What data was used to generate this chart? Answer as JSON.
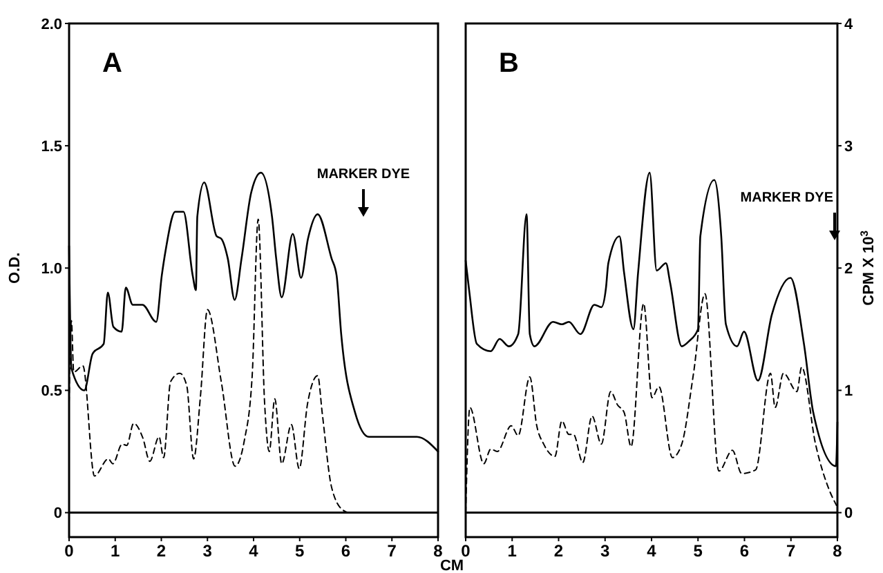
{
  "chart_data": [
    {
      "type": "line",
      "title": "A",
      "xlabel": "CM",
      "ylabel": "O.D.",
      "xlim": [
        0,
        8
      ],
      "xticks": [
        0,
        1,
        2,
        3,
        4,
        5,
        6,
        7,
        8
      ],
      "ylim": [
        -0.1,
        2.0
      ],
      "yticks": [
        0,
        0.5,
        {
          "value": 1,
          "label": "1.0"
        },
        1.5,
        {
          "value": 2,
          "label": "2.0"
        }
      ],
      "y2lim": [
        -0.2,
        4
      ],
      "grid": false,
      "marker": "none",
      "ref_lines": [
        {
          "axis": "y",
          "value": 0
        }
      ],
      "annotations": [
        "MARKER DYE"
      ],
      "series": [
        {
          "color": "#000000",
          "line_style": "solid",
          "x": [
            0,
            0.05,
            0.33,
            0.51,
            0.75,
            0.84,
            0.96,
            1.14,
            1.23,
            1.38,
            1.59,
            1.89,
            2.01,
            2.1,
            2.3,
            2.48,
            2.68,
            2.75,
            2.78,
            2.93,
            3.2,
            3.3,
            3.44,
            3.59,
            3.74,
            3.95,
            4.16,
            4.4,
            4.49,
            4.61,
            4.85,
            5.03,
            5.18,
            5.39,
            5.69,
            5.8,
            5.9,
            6.2,
            6.5,
            6.89,
            7.54,
            8
          ],
          "values": [
            1.09,
            0.59,
            0.5,
            0.65,
            0.69,
            0.9,
            0.76,
            0.74,
            0.92,
            0.85,
            0.85,
            0.78,
            0.97,
            1.08,
            1.23,
            1.23,
            0.97,
            0.91,
            1.21,
            1.35,
            1.13,
            1.12,
            1.04,
            0.87,
            1.04,
            1.31,
            1.39,
            1.21,
            1.04,
            0.88,
            1.14,
            0.96,
            1.12,
            1.22,
            1.04,
            0.97,
            0.73,
            0.41,
            0.31,
            0.31,
            0.31,
            0.25
          ]
        },
        {
          "color": "#000000",
          "line_style": "dashed",
          "axis": "y2",
          "x": [
            0,
            0.05,
            0.1,
            0.3,
            0.55,
            0.85,
            0.95,
            1.15,
            1.25,
            1.4,
            1.6,
            1.75,
            1.95,
            2.05,
            2.2,
            2.4,
            2.55,
            2.7,
            2.85,
            3.0,
            3.3,
            3.6,
            3.8,
            3.97,
            4.1,
            4.24,
            4.34,
            4.46,
            4.61,
            4.82,
            4.99,
            5.17,
            5.39,
            5.49,
            5.69,
            5.94,
            6.09,
            7.0,
            8.0
          ],
          "values": [
            0.9,
            1.57,
            1.15,
            1.2,
            0.3,
            0.44,
            0.4,
            0.56,
            0.55,
            0.73,
            0.61,
            0.42,
            0.62,
            0.45,
            1.07,
            1.14,
            1.04,
            0.44,
            0.96,
            1.66,
            1.07,
            0.38,
            0.59,
            1.12,
            2.4,
            0.89,
            0.5,
            0.93,
            0.4,
            0.72,
            0.36,
            0.89,
            1.12,
            0.81,
            0.21,
            0.02,
            0,
            0,
            0
          ]
        }
      ]
    },
    {
      "type": "line",
      "title": "B",
      "y2label": "CPM X 10$^{3}$",
      "xlim": [
        0,
        8
      ],
      "xticks": [
        0,
        1,
        2,
        3,
        4,
        5,
        6,
        7,
        8
      ],
      "ylim": [
        -0.1,
        2.0
      ],
      "y2lim": [
        -0.2,
        4
      ],
      "y2ticks": [
        0,
        1,
        2,
        3,
        4
      ],
      "grid": false,
      "marker": "none",
      "ref_lines": [
        {
          "axis": "y",
          "value": 0
        }
      ],
      "annotations": [
        "MARKER DYE"
      ],
      "series": [
        {
          "color": "#000000",
          "line_style": "solid",
          "x": [
            0,
            0.08,
            0.24,
            0.54,
            0.73,
            0.93,
            1.13,
            1.31,
            1.38,
            1.48,
            1.88,
            2.07,
            2.22,
            2.47,
            2.77,
            2.92,
            3.02,
            3.07,
            3.31,
            3.41,
            3.61,
            3.71,
            3.96,
            4.11,
            4.31,
            4.4,
            4.65,
            4.8,
            5.0,
            5.05,
            5.35,
            5.5,
            5.6,
            5.84,
            5.99,
            6.29,
            6.59,
            6.99,
            7.28,
            7.48,
            7.97,
            8.0
          ],
          "values": [
            1.03,
            0.9,
            0.69,
            0.66,
            0.71,
            0.68,
            0.73,
            1.22,
            0.73,
            0.68,
            0.78,
            0.77,
            0.78,
            0.73,
            0.85,
            0.84,
            0.92,
            1.02,
            1.13,
            0.98,
            0.75,
            0.98,
            1.39,
            0.99,
            1.02,
            0.94,
            0.68,
            0.7,
            0.75,
            1.13,
            1.36,
            1.13,
            0.77,
            0.68,
            0.74,
            0.54,
            0.81,
            0.96,
            0.69,
            0.41,
            0.19,
            0.37
          ]
        },
        {
          "color": "#000000",
          "line_style": "dashed",
          "axis": "y2",
          "x": [
            0,
            0.09,
            0.39,
            0.54,
            0.68,
            0.98,
            1.13,
            1.38,
            1.53,
            1.68,
            1.92,
            2.07,
            2.22,
            2.32,
            2.52,
            2.72,
            2.92,
            3.12,
            3.27,
            3.41,
            3.56,
            3.83,
            4.01,
            4.16,
            4.45,
            4.65,
            4.9,
            5.15,
            5.45,
            5.74,
            5.94,
            6.24,
            6.56,
            6.66,
            6.84,
            7.13,
            7.23,
            7.53,
            7.83,
            7.98
          ],
          "values": [
            0,
            0.86,
            0.4,
            0.52,
            0.5,
            0.71,
            0.63,
            1.11,
            0.71,
            0.56,
            0.46,
            0.75,
            0.64,
            0.64,
            0.41,
            0.79,
            0.56,
            0.99,
            0.88,
            0.82,
            0.54,
            1.71,
            0.94,
            1.03,
            0.45,
            0.56,
            1.13,
            1.79,
            0.34,
            0.51,
            0.32,
            0.35,
            1.14,
            0.86,
            1.14,
            0.99,
            1.19,
            0.56,
            0.18,
            0.06
          ]
        }
      ]
    }
  ]
}
